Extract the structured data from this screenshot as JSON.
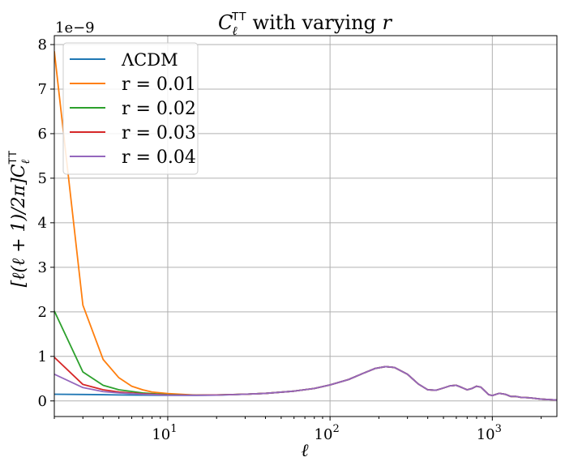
{
  "chart_data": {
    "type": "line",
    "title": {
      "prefix": "C",
      "subscript": "ℓ",
      "superscript": "TT",
      "text": " with varying ",
      "symbol": "r"
    },
    "xlabel": "ℓ",
    "ylabel": {
      "prefix": "[ℓ(ℓ + 1)/2π]C",
      "subscript": "ℓ",
      "superscript": "TT"
    },
    "x_scale": "log",
    "xlim": [
      2,
      2500
    ],
    "ylim": [
      -0.35,
      8.2
    ],
    "y_multiplier": "1e−9",
    "grid": true,
    "legend_position": "top-left",
    "x_ticks": [
      {
        "value": 10,
        "base": "10",
        "exp": "1"
      },
      {
        "value": 100,
        "base": "10",
        "exp": "2"
      },
      {
        "value": 1000,
        "base": "10",
        "exp": "3"
      }
    ],
    "y_ticks": [
      {
        "value": 0,
        "label": "0"
      },
      {
        "value": 1,
        "label": "1"
      },
      {
        "value": 2,
        "label": "2"
      },
      {
        "value": 3,
        "label": "3"
      },
      {
        "value": 4,
        "label": "4"
      },
      {
        "value": 5,
        "label": "5"
      },
      {
        "value": 6,
        "label": "6"
      },
      {
        "value": 7,
        "label": "7"
      },
      {
        "value": 8,
        "label": "8"
      }
    ],
    "series": [
      {
        "name": "ΛCDM",
        "color": "#1f77b4",
        "points": [
          [
            2,
            0.15
          ],
          [
            3,
            0.145
          ],
          [
            4,
            0.14
          ],
          [
            5,
            0.135
          ],
          [
            7,
            0.13
          ],
          [
            10,
            0.125
          ],
          [
            15,
            0.125
          ],
          [
            20,
            0.13
          ],
          [
            30,
            0.15
          ],
          [
            40,
            0.17
          ],
          [
            60,
            0.22
          ],
          [
            80,
            0.28
          ],
          [
            100,
            0.36
          ],
          [
            130,
            0.48
          ],
          [
            160,
            0.62
          ],
          [
            190,
            0.73
          ],
          [
            220,
            0.77
          ],
          [
            250,
            0.75
          ],
          [
            300,
            0.6
          ],
          [
            350,
            0.38
          ],
          [
            400,
            0.25
          ],
          [
            450,
            0.24
          ],
          [
            500,
            0.29
          ],
          [
            550,
            0.34
          ],
          [
            600,
            0.35
          ],
          [
            650,
            0.3
          ],
          [
            700,
            0.25
          ],
          [
            750,
            0.28
          ],
          [
            800,
            0.33
          ],
          [
            850,
            0.31
          ],
          [
            950,
            0.14
          ],
          [
            1000,
            0.12
          ],
          [
            1100,
            0.17
          ],
          [
            1200,
            0.15
          ],
          [
            1300,
            0.1
          ],
          [
            1400,
            0.1
          ],
          [
            1500,
            0.08
          ],
          [
            1700,
            0.07
          ],
          [
            2000,
            0.04
          ],
          [
            2500,
            0.02
          ]
        ]
      },
      {
        "name": "r = 0.01",
        "color": "#ff7f0e",
        "points": [
          [
            2,
            7.85
          ],
          [
            3,
            2.15
          ],
          [
            4,
            0.93
          ],
          [
            5,
            0.52
          ],
          [
            6,
            0.33
          ],
          [
            7,
            0.25
          ],
          [
            8,
            0.2
          ],
          [
            10,
            0.165
          ],
          [
            15,
            0.13
          ],
          [
            20,
            0.135
          ],
          [
            30,
            0.15
          ],
          [
            40,
            0.17
          ],
          [
            60,
            0.22
          ],
          [
            80,
            0.28
          ],
          [
            100,
            0.36
          ],
          [
            130,
            0.48
          ],
          [
            160,
            0.62
          ],
          [
            190,
            0.73
          ],
          [
            220,
            0.77
          ],
          [
            250,
            0.75
          ],
          [
            300,
            0.6
          ],
          [
            350,
            0.38
          ],
          [
            400,
            0.25
          ],
          [
            450,
            0.24
          ],
          [
            500,
            0.29
          ],
          [
            550,
            0.34
          ],
          [
            600,
            0.35
          ],
          [
            650,
            0.3
          ],
          [
            700,
            0.25
          ],
          [
            750,
            0.28
          ],
          [
            800,
            0.33
          ],
          [
            850,
            0.31
          ],
          [
            950,
            0.14
          ],
          [
            1000,
            0.12
          ],
          [
            1100,
            0.17
          ],
          [
            1200,
            0.15
          ],
          [
            1300,
            0.1
          ],
          [
            1400,
            0.1
          ],
          [
            1500,
            0.08
          ],
          [
            1700,
            0.07
          ],
          [
            2000,
            0.04
          ],
          [
            2500,
            0.02
          ]
        ]
      },
      {
        "name": "r = 0.02",
        "color": "#2ca02c",
        "points": [
          [
            2,
            2.02
          ],
          [
            3,
            0.65
          ],
          [
            4,
            0.35
          ],
          [
            5,
            0.25
          ],
          [
            7,
            0.18
          ],
          [
            10,
            0.14
          ],
          [
            15,
            0.13
          ],
          [
            20,
            0.135
          ],
          [
            30,
            0.15
          ],
          [
            40,
            0.17
          ],
          [
            60,
            0.22
          ],
          [
            80,
            0.28
          ],
          [
            100,
            0.36
          ],
          [
            130,
            0.48
          ],
          [
            160,
            0.62
          ],
          [
            190,
            0.73
          ],
          [
            220,
            0.77
          ],
          [
            250,
            0.75
          ],
          [
            300,
            0.6
          ],
          [
            350,
            0.38
          ],
          [
            400,
            0.25
          ],
          [
            450,
            0.24
          ],
          [
            500,
            0.29
          ],
          [
            550,
            0.34
          ],
          [
            600,
            0.35
          ],
          [
            650,
            0.3
          ],
          [
            700,
            0.25
          ],
          [
            750,
            0.28
          ],
          [
            800,
            0.33
          ],
          [
            850,
            0.31
          ],
          [
            950,
            0.14
          ],
          [
            1000,
            0.12
          ],
          [
            1100,
            0.17
          ],
          [
            1200,
            0.15
          ],
          [
            1300,
            0.1
          ],
          [
            1400,
            0.1
          ],
          [
            1500,
            0.08
          ],
          [
            1700,
            0.07
          ],
          [
            2000,
            0.04
          ],
          [
            2500,
            0.02
          ]
        ]
      },
      {
        "name": "r = 0.03",
        "color": "#d62728",
        "points": [
          [
            2,
            0.98
          ],
          [
            3,
            0.37
          ],
          [
            4,
            0.25
          ],
          [
            5,
            0.2
          ],
          [
            7,
            0.16
          ],
          [
            10,
            0.135
          ],
          [
            15,
            0.13
          ],
          [
            20,
            0.135
          ],
          [
            30,
            0.15
          ],
          [
            40,
            0.17
          ],
          [
            60,
            0.22
          ],
          [
            80,
            0.28
          ],
          [
            100,
            0.36
          ],
          [
            130,
            0.48
          ],
          [
            160,
            0.62
          ],
          [
            190,
            0.73
          ],
          [
            220,
            0.77
          ],
          [
            250,
            0.75
          ],
          [
            300,
            0.6
          ],
          [
            350,
            0.38
          ],
          [
            400,
            0.25
          ],
          [
            450,
            0.24
          ],
          [
            500,
            0.29
          ],
          [
            550,
            0.34
          ],
          [
            600,
            0.35
          ],
          [
            650,
            0.3
          ],
          [
            700,
            0.25
          ],
          [
            750,
            0.28
          ],
          [
            800,
            0.33
          ],
          [
            850,
            0.31
          ],
          [
            950,
            0.14
          ],
          [
            1000,
            0.12
          ],
          [
            1100,
            0.17
          ],
          [
            1200,
            0.15
          ],
          [
            1300,
            0.1
          ],
          [
            1400,
            0.1
          ],
          [
            1500,
            0.08
          ],
          [
            1700,
            0.07
          ],
          [
            2000,
            0.04
          ],
          [
            2500,
            0.02
          ]
        ]
      },
      {
        "name": "r = 0.04",
        "color": "#9467bd",
        "points": [
          [
            2,
            0.6
          ],
          [
            3,
            0.3
          ],
          [
            4,
            0.21
          ],
          [
            5,
            0.18
          ],
          [
            7,
            0.15
          ],
          [
            10,
            0.13
          ],
          [
            15,
            0.125
          ],
          [
            20,
            0.13
          ],
          [
            30,
            0.15
          ],
          [
            40,
            0.17
          ],
          [
            60,
            0.22
          ],
          [
            80,
            0.28
          ],
          [
            100,
            0.36
          ],
          [
            130,
            0.48
          ],
          [
            160,
            0.62
          ],
          [
            190,
            0.73
          ],
          [
            220,
            0.77
          ],
          [
            250,
            0.75
          ],
          [
            300,
            0.6
          ],
          [
            350,
            0.38
          ],
          [
            400,
            0.25
          ],
          [
            450,
            0.24
          ],
          [
            500,
            0.29
          ],
          [
            550,
            0.34
          ],
          [
            600,
            0.35
          ],
          [
            650,
            0.3
          ],
          [
            700,
            0.25
          ],
          [
            750,
            0.28
          ],
          [
            800,
            0.33
          ],
          [
            850,
            0.31
          ],
          [
            950,
            0.14
          ],
          [
            1000,
            0.12
          ],
          [
            1100,
            0.17
          ],
          [
            1200,
            0.15
          ],
          [
            1300,
            0.1
          ],
          [
            1400,
            0.1
          ],
          [
            1500,
            0.08
          ],
          [
            1700,
            0.07
          ],
          [
            2000,
            0.04
          ],
          [
            2500,
            0.02
          ]
        ]
      }
    ]
  }
}
